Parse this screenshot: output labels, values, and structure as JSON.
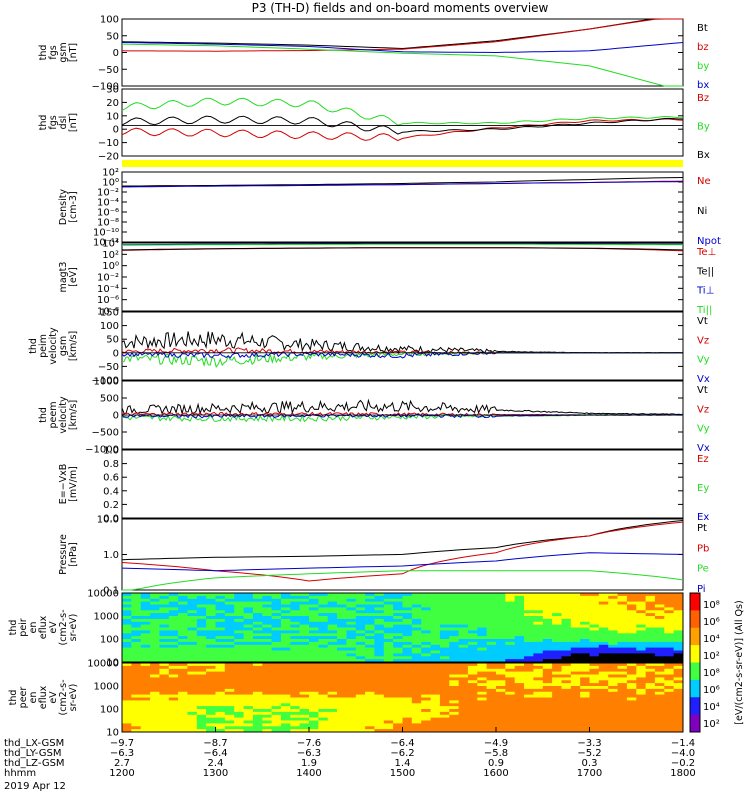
{
  "title": "P3 (TH-D) fields and on-board moments overview",
  "colors": {
    "black": "#000000",
    "red": "#d40000",
    "green": "#22dd22",
    "blue": "#0000cc",
    "yellow": "#ffff00"
  },
  "panels": [
    {
      "id": "p1",
      "ylabel": [
        "thd",
        "fgs",
        "gsm",
        "[nT]"
      ],
      "scale": "linear",
      "ticks": [
        "100",
        "50",
        "0",
        "−50",
        "−100"
      ],
      "legend": [
        {
          "text": "Bt",
          "color": "black"
        },
        {
          "text": "bz",
          "color": "red"
        },
        {
          "text": "by",
          "color": "green"
        },
        {
          "text": "bx",
          "color": "blue"
        }
      ]
    },
    {
      "id": "p2",
      "ylabel": [
        "thd",
        "fgs",
        "dsl",
        "[nT]"
      ],
      "scale": "linear",
      "ticks": [
        "30",
        "20",
        "10",
        "0",
        "−10",
        "−20"
      ],
      "legend": [
        {
          "text": "Bz",
          "color": "red"
        },
        {
          "text": "By",
          "color": "green"
        },
        {
          "text": "Bx",
          "color": "black"
        }
      ]
    },
    {
      "id": "p3",
      "ylabel": [
        "Density",
        "[cm-3]"
      ],
      "scale": "log",
      "ticks": [
        "10²",
        "10⁰",
        "10⁻²",
        "10⁻⁴",
        "10⁻⁶",
        "10⁻⁸",
        "10⁻¹⁰",
        "10⁻¹²"
      ],
      "legend": [
        {
          "text": "Ne",
          "color": "red"
        },
        {
          "text": "Ni",
          "color": "black"
        },
        {
          "text": "Npot",
          "color": "blue"
        }
      ]
    },
    {
      "id": "p4",
      "ylabel": [
        "magt3",
        "[eV]"
      ],
      "scale": "log",
      "ticks": [
        "10⁴",
        "10²",
        "10⁰",
        "10⁻²",
        "10⁻⁴",
        "10⁻⁶",
        "10⁻⁸"
      ],
      "legend": [
        {
          "text": "Te⊥",
          "color": "red"
        },
        {
          "text": "Te||",
          "color": "black"
        },
        {
          "text": "Ti⊥",
          "color": "blue"
        },
        {
          "text": "Ti||",
          "color": "green"
        }
      ]
    },
    {
      "id": "p5",
      "ylabel": [
        "thd",
        "peim",
        "velocity",
        "gsm",
        "[km/s]"
      ],
      "scale": "linear",
      "ticks": [
        "150",
        "100",
        "50",
        "0",
        "−50",
        "−100"
      ],
      "legend": [
        {
          "text": "Vt",
          "color": "black"
        },
        {
          "text": "Vz",
          "color": "red"
        },
        {
          "text": "Vy",
          "color": "green"
        },
        {
          "text": "Vx",
          "color": "blue"
        }
      ]
    },
    {
      "id": "p6",
      "ylabel": [
        "thd",
        "peem",
        "velocity",
        "[km/s]"
      ],
      "scale": "linear",
      "ticks": [
        "1000",
        "500",
        "0",
        "−500",
        "−1000"
      ],
      "legend": [
        {
          "text": "Vt",
          "color": "black"
        },
        {
          "text": "Vz",
          "color": "red"
        },
        {
          "text": "Vy",
          "color": "green"
        },
        {
          "text": "Vx",
          "color": "blue"
        }
      ]
    },
    {
      "id": "p7",
      "ylabel": [
        "E=−VxB",
        "[mV/m]"
      ],
      "scale": "linear",
      "ticks": [
        "1.0",
        "0.8",
        "0.6",
        "0.4",
        "0.2",
        "0.0"
      ],
      "legend": [
        {
          "text": "Ez",
          "color": "red"
        },
        {
          "text": "Ey",
          "color": "green"
        },
        {
          "text": "Ex",
          "color": "blue"
        }
      ]
    },
    {
      "id": "p8",
      "ylabel": [
        "Pressure",
        "[nPa]"
      ],
      "scale": "log",
      "ticks": [
        "10.0",
        "1.0",
        "0.1"
      ],
      "legend": [
        {
          "text": "Pt",
          "color": "black"
        },
        {
          "text": "Pb",
          "color": "red"
        },
        {
          "text": "Pe",
          "color": "green"
        },
        {
          "text": "Pi",
          "color": "blue"
        }
      ]
    },
    {
      "id": "p9",
      "ylabel": [
        "thd",
        "peir",
        "en",
        "eflux",
        "eV",
        "(cm2-s-",
        "sr-eV)"
      ],
      "scale": "log",
      "ticks": [
        "10000",
        "1000",
        "100",
        "10"
      ],
      "legend": []
    },
    {
      "id": "p10",
      "ylabel": [
        "thd",
        "peer",
        "en",
        "eflux",
        "eV",
        "(cm2-s-",
        "sr-eV)"
      ],
      "scale": "log",
      "ticks": [
        "10000",
        "1000",
        "100",
        "10"
      ],
      "legend": []
    }
  ],
  "colorbar": {
    "label": "[eV/(cm2-s-sr-eV)] (All Qs)",
    "ticks": [
      "10⁸",
      "10⁶",
      "10⁴",
      "10²",
      "10⁸",
      "10⁶",
      "10⁴",
      "10²"
    ]
  },
  "yellow_bar": true,
  "bottom_axis": {
    "rows": [
      {
        "label": "thd_LX-GSM",
        "values": [
          "−9.7",
          "−8.7",
          "−7.6",
          "−6.4",
          "−4.9",
          "−3.3",
          "−1.4"
        ]
      },
      {
        "label": "thd_LY-GSM",
        "values": [
          "−6.3",
          "−6.4",
          "−6.3",
          "−6.2",
          "−5.8",
          "−5.2",
          "−4.0"
        ]
      },
      {
        "label": "thd_LZ-GSM",
        "values": [
          "2.7",
          "2.4",
          "1.9",
          "1.4",
          "0.9",
          "0.3",
          "−0.2"
        ]
      },
      {
        "label": "hhmm",
        "values": [
          "1200",
          "1300",
          "1400",
          "1500",
          "1600",
          "1700",
          "1800"
        ]
      }
    ],
    "date": "2019 Apr 12"
  },
  "chart_data": [
    {
      "type": "line",
      "panel": "p1",
      "title": "P3 (TH-D) fields and on-board moments overview",
      "ylabel": "thd fgs gsm [nT]",
      "ylim": [
        -100,
        100
      ],
      "x": [
        1200,
        1300,
        1400,
        1500,
        1600,
        1700,
        1800
      ],
      "xlabel": "hhmm",
      "series": [
        {
          "name": "Bt",
          "values": [
            32,
            28,
            22,
            12,
            35,
            70,
            115
          ]
        },
        {
          "name": "bz",
          "values": [
            5,
            4,
            6,
            10,
            32,
            70,
            112
          ]
        },
        {
          "name": "by",
          "values": [
            25,
            20,
            10,
            -2,
            -10,
            -40,
            -115
          ]
        },
        {
          "name": "bx",
          "values": [
            30,
            25,
            18,
            2,
            0,
            5,
            30
          ]
        }
      ]
    },
    {
      "type": "line",
      "panel": "p2",
      "ylabel": "thd fgs dsl [nT]",
      "ylim": [
        -25,
        30
      ],
      "x": [
        1200,
        1300,
        1400,
        1500,
        1600,
        1700,
        1800
      ],
      "series": [
        {
          "name": "Bz",
          "values": [
            -5,
            -6,
            -8,
            -10,
            -2,
            4,
            5
          ]
        },
        {
          "name": "By",
          "values": [
            15,
            20,
            18,
            2,
            2,
            6,
            7
          ]
        },
        {
          "name": "Bx",
          "values": [
            3,
            5,
            4,
            -5,
            -3,
            2,
            6
          ]
        }
      ]
    },
    {
      "type": "line",
      "panel": "p3",
      "ylabel": "Density [cm-3]",
      "yscale": "log",
      "x": [
        1200,
        1300,
        1400,
        1500,
        1600,
        1700,
        1800
      ],
      "series": [
        {
          "name": "Ne",
          "values": [
            0.15,
            0.2,
            0.25,
            0.3,
            0.5,
            0.8,
            1.5
          ]
        },
        {
          "name": "Ni",
          "values": [
            0.15,
            0.2,
            0.3,
            0.5,
            1,
            3,
            8
          ]
        },
        {
          "name": "Npot",
          "values": [
            0.1,
            0.15,
            0.2,
            0.3,
            0.5,
            0.8,
            1.2
          ]
        }
      ]
    },
    {
      "type": "line",
      "panel": "p4",
      "ylabel": "magt3 [eV]",
      "yscale": "log",
      "x": [
        1200,
        1300,
        1400,
        1500,
        1600,
        1700,
        1800
      ],
      "series": [
        {
          "name": "Te⊥",
          "values": [
            500,
            900,
            1200,
            1500,
            1500,
            1100,
            400
          ]
        },
        {
          "name": "Te||",
          "values": [
            600,
            1000,
            1300,
            1500,
            1500,
            1200,
            600
          ]
        },
        {
          "name": "Ti⊥",
          "values": [
            5000,
            6000,
            6500,
            7000,
            7000,
            6500,
            6000
          ]
        },
        {
          "name": "Ti||",
          "values": [
            4000,
            5000,
            5500,
            6000,
            6000,
            5500,
            5000
          ]
        }
      ]
    },
    {
      "type": "line",
      "panel": "p5",
      "ylabel": "thd peim velocity gsm [km/s]",
      "ylim": [
        -100,
        150
      ],
      "x": [
        1200,
        1300,
        1400,
        1500,
        1600,
        1700,
        1800
      ],
      "series": [
        {
          "name": "Vt",
          "values": [
            40,
            50,
            30,
            15,
            5,
            0,
            0
          ]
        },
        {
          "name": "Vz",
          "values": [
            5,
            10,
            5,
            2,
            0,
            0,
            0
          ]
        },
        {
          "name": "Vy",
          "values": [
            -20,
            -30,
            -15,
            -5,
            0,
            0,
            0
          ]
        },
        {
          "name": "Vx",
          "values": [
            -5,
            -10,
            -5,
            -10,
            0,
            0,
            0
          ]
        }
      ]
    },
    {
      "type": "line",
      "panel": "p6",
      "ylabel": "thd peem velocity [km/s]",
      "ylim": [
        -1000,
        1000
      ],
      "x": [
        1200,
        1300,
        1400,
        1500,
        1600,
        1700,
        1800
      ],
      "series": [
        {
          "name": "Vt",
          "values": [
            150,
            200,
            250,
            250,
            150,
            50,
            20
          ]
        },
        {
          "name": "Vz",
          "values": [
            20,
            30,
            30,
            20,
            10,
            5,
            0
          ]
        },
        {
          "name": "Vy",
          "values": [
            -80,
            -100,
            -100,
            -60,
            -30,
            -10,
            0
          ]
        },
        {
          "name": "Vx",
          "values": [
            -20,
            -40,
            -20,
            -20,
            -30,
            0,
            0
          ]
        }
      ]
    },
    {
      "type": "line",
      "panel": "p8",
      "ylabel": "Pressure [nPa]",
      "yscale": "log",
      "x": [
        1200,
        1300,
        1400,
        1500,
        1600,
        1700,
        1800
      ],
      "series": [
        {
          "name": "Pt",
          "values": [
            0.55,
            0.65,
            0.7,
            0.8,
            1.3,
            3,
            9
          ]
        },
        {
          "name": "Pb",
          "values": [
            0.45,
            0.25,
            0.12,
            0.2,
            0.9,
            3,
            8
          ]
        },
        {
          "name": "Pe",
          "values": [
            0.05,
            0.15,
            0.2,
            0.25,
            0.25,
            0.25,
            0.13
          ]
        },
        {
          "name": "Pi",
          "values": [
            0.3,
            0.25,
            0.3,
            0.35,
            0.5,
            0.9,
            0.8
          ]
        }
      ]
    },
    {
      "type": "heatmap",
      "panel": "p9",
      "ylabel": "thd peir en eflux eV (cm2-s- sr-eV)",
      "yscale": "log",
      "x": [
        1200,
        1300,
        1400,
        1500,
        1600,
        1700,
        1800
      ],
      "y": [
        10,
        100,
        1000,
        10000
      ],
      "note_levels": "log10 eflux",
      "values": [
        [
          5.5,
          5.5,
          5.5,
          5,
          4.5,
          2,
          2
        ],
        [
          5,
          5,
          5,
          5,
          5,
          5.5,
          5.5
        ],
        [
          5,
          5,
          5,
          5,
          5.5,
          6.5,
          7
        ],
        [
          5,
          5,
          5,
          5,
          6,
          7,
          7.5
        ]
      ]
    },
    {
      "type": "heatmap",
      "panel": "p10",
      "ylabel": "thd peer en eflux eV (cm2-s- sr-eV)",
      "yscale": "log",
      "x": [
        1200,
        1300,
        1400,
        1500,
        1600,
        1700,
        1800
      ],
      "y": [
        10,
        100,
        1000,
        10000
      ],
      "values": [
        [
          7,
          6,
          6,
          7.5,
          7.5,
          7.5,
          7.5
        ],
        [
          6.5,
          6,
          6,
          6.5,
          7.5,
          7.5,
          7.5
        ],
        [
          7.5,
          7.5,
          7.5,
          7.5,
          7,
          7,
          7
        ],
        [
          7,
          7,
          7.5,
          7.5,
          7,
          7,
          7
        ]
      ]
    }
  ]
}
